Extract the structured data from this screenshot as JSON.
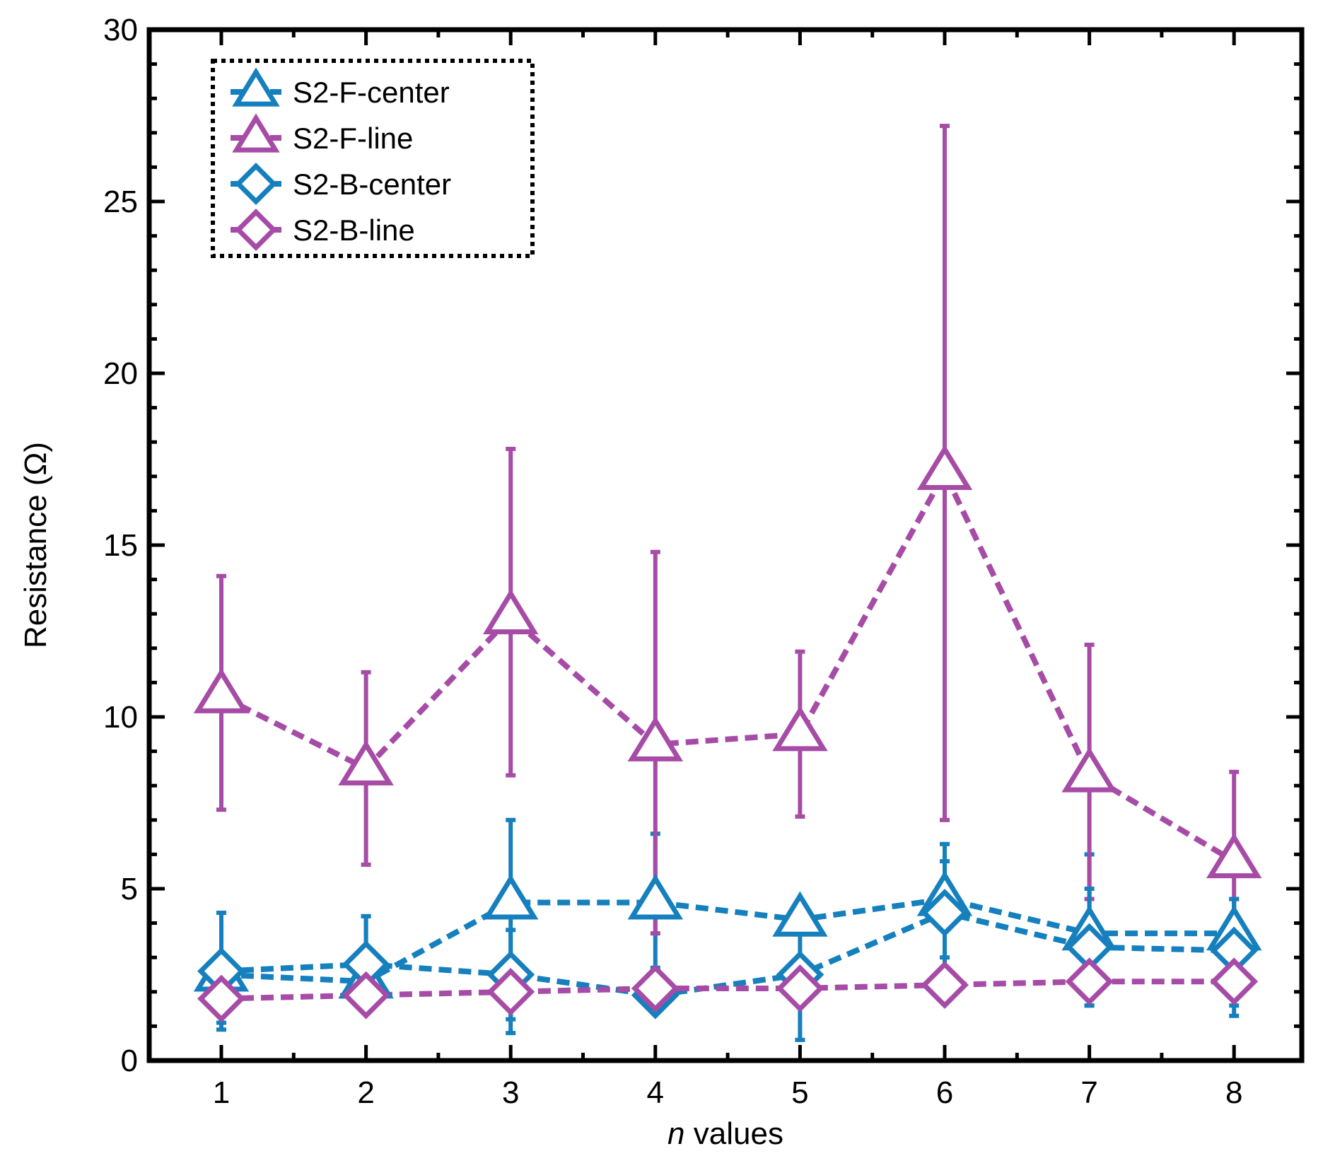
{
  "chart_data": {
    "type": "line",
    "title": "",
    "xlabel_italic": "n",
    "xlabel_rest": " values",
    "ylabel": "Resistance (Ω)",
    "x": [
      1,
      2,
      3,
      4,
      5,
      6,
      7,
      8
    ],
    "xlim": [
      0.5,
      8.5
    ],
    "ylim": [
      0,
      30
    ],
    "yticks": [
      0,
      5,
      10,
      15,
      20,
      25,
      30
    ],
    "xticks": [
      1,
      2,
      3,
      4,
      5,
      6,
      7,
      8
    ],
    "legend_position": "top-left",
    "grid": false,
    "colors": {
      "blue": "#1580bd",
      "magenta": "#a64ca6"
    },
    "series": [
      {
        "name": "S2-F-center",
        "marker": "triangle",
        "color": "#1580bd",
        "values": [
          2.5,
          2.3,
          4.6,
          4.6,
          4.1,
          4.7,
          3.7,
          3.7
        ],
        "err_low": [
          1.1,
          1.6,
          0.8,
          2.1,
          0.6,
          1.8,
          1.6,
          1.3
        ],
        "err_high": [
          4.3,
          4.2,
          7.0,
          6.6,
          4.6,
          6.3,
          6.0,
          4.7
        ]
      },
      {
        "name": "S2-F-line",
        "marker": "triangle",
        "color": "#a64ca6",
        "values": [
          10.6,
          8.5,
          12.9,
          9.2,
          9.5,
          17.1,
          8.3,
          5.8
        ],
        "err_low": [
          7.3,
          5.7,
          8.3,
          3.7,
          7.1,
          7.0,
          4.7,
          3.3
        ],
        "err_high": [
          14.1,
          11.3,
          17.8,
          14.8,
          11.9,
          27.2,
          12.1,
          8.4
        ]
      },
      {
        "name": "S2-B-center",
        "marker": "diamond",
        "color": "#1580bd",
        "values": [
          2.6,
          2.8,
          2.5,
          1.9,
          2.5,
          4.3,
          3.3,
          3.2
        ],
        "err_low": [
          0.9,
          1.4,
          1.2,
          1.6,
          1.8,
          3.0,
          1.6,
          1.6
        ],
        "err_high": [
          4.3,
          4.2,
          3.8,
          2.7,
          2.6,
          5.8,
          5.0,
          4.7
        ]
      },
      {
        "name": "S2-B-line",
        "marker": "diamond",
        "color": "#a64ca6",
        "values": [
          1.8,
          1.9,
          2.0,
          2.1,
          2.1,
          2.2,
          2.3,
          2.3
        ],
        "err_low": [
          1.5,
          1.5,
          1.6,
          1.8,
          1.8,
          2.0,
          2.0,
          2.0
        ],
        "err_high": [
          2.1,
          2.3,
          2.3,
          2.4,
          2.4,
          2.4,
          2.5,
          2.5
        ]
      }
    ]
  }
}
